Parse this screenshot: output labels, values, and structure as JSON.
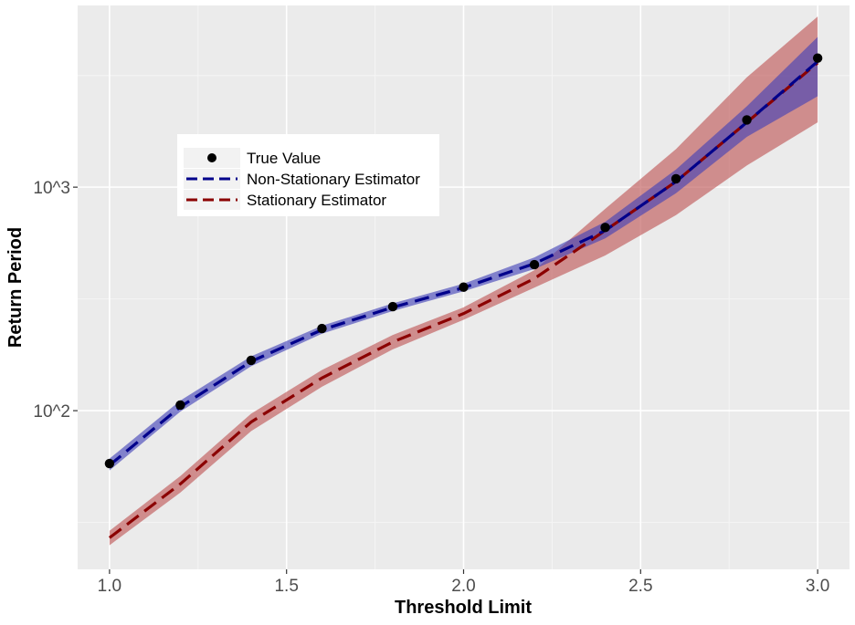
{
  "chart_data": {
    "type": "line",
    "title": "",
    "xlabel": "Threshold Limit",
    "ylabel": "Return Period",
    "y_scale": "log10",
    "xlim": [
      0.91,
      3.09
    ],
    "ylim": [
      19.5,
      6500
    ],
    "grid": true,
    "x_ticks": [
      1.0,
      1.5,
      2.0,
      2.5,
      3.0
    ],
    "x_tick_labels": [
      "1.0",
      "1.5",
      "2.0",
      "2.5",
      "3.0"
    ],
    "y_ticks": [
      100,
      1000
    ],
    "y_tick_labels": [
      "10^2",
      "10^3"
    ],
    "y_minor_ticks": [
      31.6,
      316,
      3160
    ],
    "x": [
      1.0,
      1.2,
      1.4,
      1.6,
      1.8,
      2.0,
      2.2,
      2.4,
      2.6,
      2.8,
      3.0
    ],
    "series": [
      {
        "name": "True Value",
        "kind": "points",
        "color": "#000000",
        "values": [
          58,
          106,
          168,
          233,
          292,
          357,
          450,
          660,
          1090,
          2000,
          3780
        ]
      },
      {
        "name": "Non-Stationary Estimator",
        "kind": "dashed-line",
        "color": "#00008B",
        "band_color": "#4040b8",
        "values": [
          57,
          104,
          166,
          230,
          290,
          355,
          455,
          640,
          1060,
          1950,
          3650
        ],
        "lower": [
          54,
          99,
          158,
          221,
          279,
          342,
          430,
          590,
          940,
          1680,
          2550
        ],
        "upper": [
          61,
          111,
          175,
          240,
          302,
          370,
          485,
          700,
          1200,
          2300,
          4700
        ]
      },
      {
        "name": "Stationary Estimator",
        "kind": "dashed-line",
        "color": "#8B0000",
        "band_color": "#c05a5a",
        "values": [
          27,
          47,
          89,
          140,
          203,
          272,
          390,
          640,
          1060,
          1950,
          3600
        ],
        "lower": [
          25,
          43,
          81,
          128,
          188,
          255,
          355,
          495,
          750,
          1250,
          1950
        ],
        "upper": [
          29,
          51,
          97,
          152,
          218,
          290,
          425,
          800,
          1480,
          3100,
          5800
        ]
      }
    ],
    "legend": {
      "position": "top-left",
      "entries": [
        "True Value",
        "Non-Stationary Estimator",
        "Stationary Estimator"
      ]
    }
  }
}
